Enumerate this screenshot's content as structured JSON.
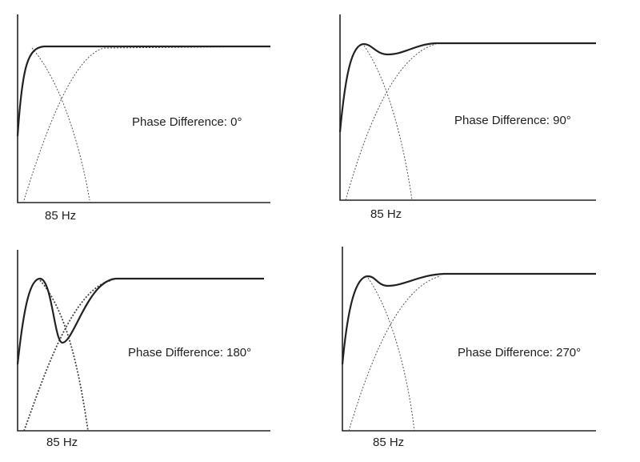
{
  "panels": [
    {
      "label": "Phase Difference: 0°",
      "x_label": "85 Hz"
    },
    {
      "label": "Phase Difference: 90°",
      "x_label": "85 Hz"
    },
    {
      "label": "Phase Difference: 180°",
      "x_label": "85 Hz"
    },
    {
      "label": "Phase Difference: 270°",
      "x_label": "85 Hz"
    }
  ]
}
